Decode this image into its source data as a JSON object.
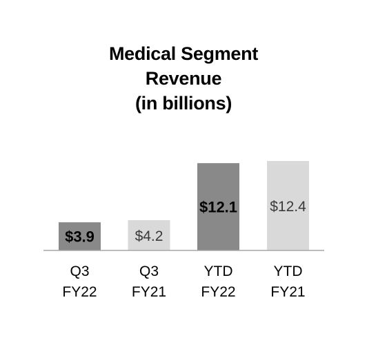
{
  "chart_data": {
    "type": "bar",
    "title": [
      "Medical Segment",
      "Revenue",
      "(in billions)"
    ],
    "categories": [
      [
        "Q3",
        "FY22"
      ],
      [
        "Q3",
        "FY21"
      ],
      [
        "YTD",
        "FY22"
      ],
      [
        "YTD",
        "FY21"
      ]
    ],
    "values": [
      3.9,
      4.2,
      12.1,
      12.4
    ],
    "value_labels": [
      "$3.9",
      "$4.2",
      "$12.1",
      "$12.4"
    ],
    "value_label_bold": [
      true,
      false,
      true,
      false
    ],
    "colors": [
      "#898989",
      "#d9d9d9",
      "#898989",
      "#d9d9d9"
    ],
    "grid": false,
    "legend": "none"
  }
}
